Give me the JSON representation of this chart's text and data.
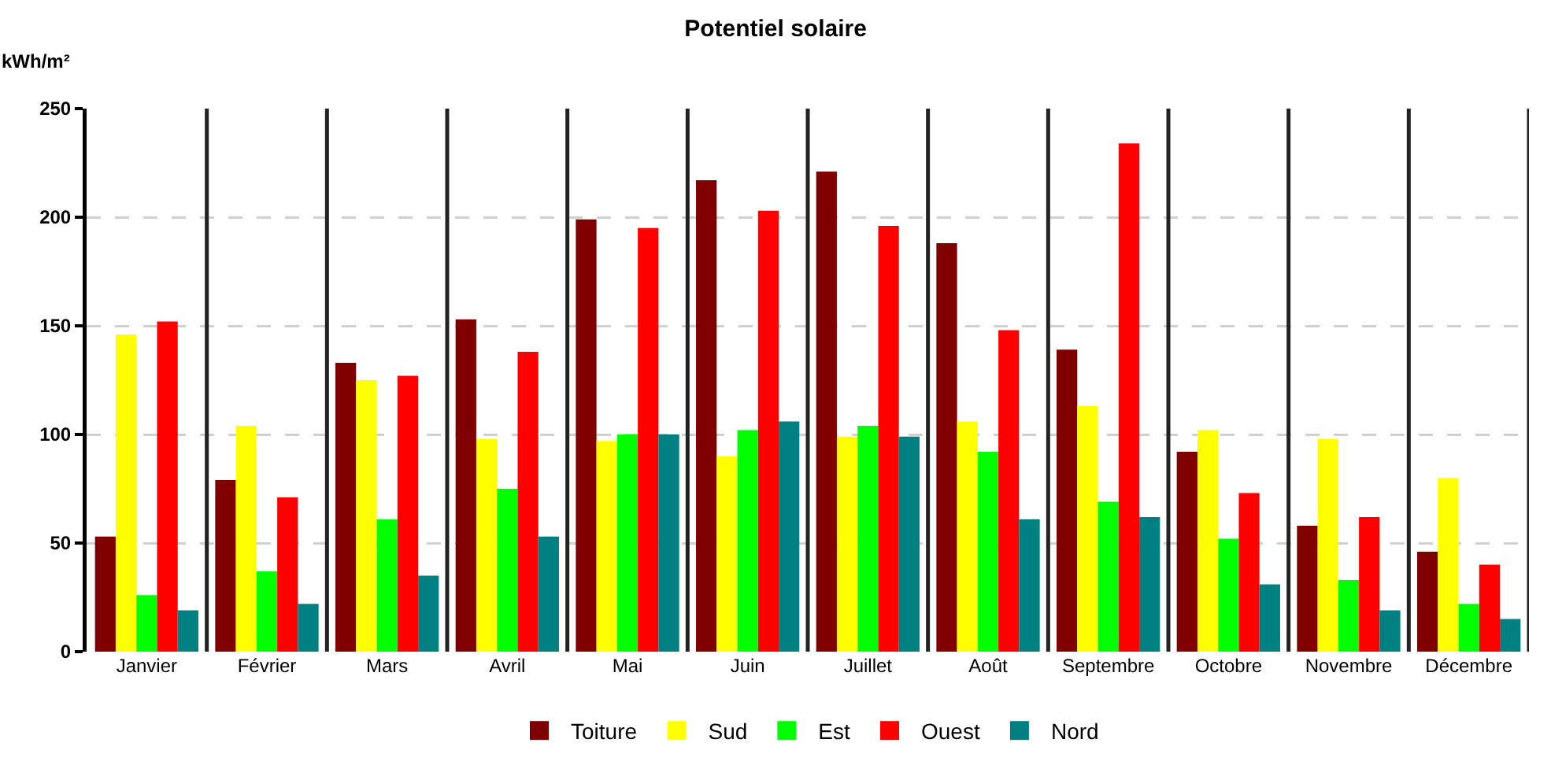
{
  "chart_data": {
    "type": "bar",
    "title": "Potentiel solaire",
    "ylabel": "kWh/m²",
    "categories": [
      "Janvier",
      "Février",
      "Mars",
      "Avril",
      "Mai",
      "Juin",
      "Juillet",
      "Août",
      "Septembre",
      "Octobre",
      "Novembre",
      "Décembre"
    ],
    "series": [
      {
        "name": "Toiture",
        "color": "#800000",
        "values": [
          53,
          79,
          133,
          153,
          199,
          217,
          221,
          188,
          139,
          92,
          58,
          46
        ]
      },
      {
        "name": "Sud",
        "color": "#ffff00",
        "values": [
          146,
          104,
          125,
          98,
          97,
          90,
          99,
          106,
          113,
          102,
          98,
          80
        ]
      },
      {
        "name": "Est",
        "color": "#00ff00",
        "values": [
          26,
          37,
          61,
          75,
          100,
          102,
          104,
          92,
          69,
          52,
          33,
          22
        ]
      },
      {
        "name": "Ouest",
        "color": "#ff0000",
        "values": [
          152,
          71,
          127,
          138,
          195,
          203,
          196,
          148,
          234,
          73,
          62,
          40
        ]
      },
      {
        "name": "Nord",
        "color": "#008080",
        "values": [
          19,
          22,
          35,
          53,
          100,
          106,
          99,
          61,
          62,
          31,
          19,
          15
        ]
      }
    ],
    "ylim": [
      0,
      250
    ],
    "yticks": [
      0,
      50,
      100,
      150,
      200,
      250
    ],
    "grid": true,
    "legend": "bottom"
  }
}
